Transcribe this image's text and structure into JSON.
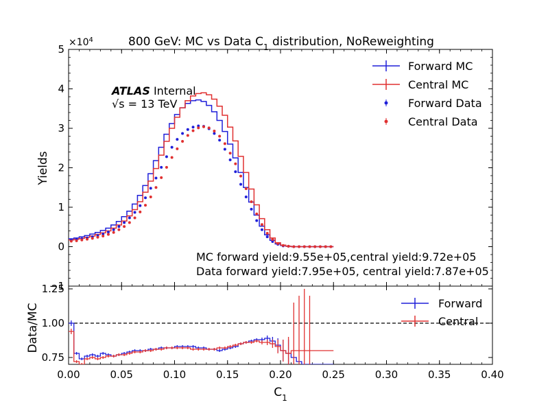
{
  "colors": {
    "forward": "#1f1fd9",
    "central": "#e03030",
    "axis": "#000000",
    "refline": "#000000"
  },
  "chart_data": [
    {
      "type": "line",
      "panel": "main",
      "title_parts": {
        "prefix": "800 GeV: MC vs Data C",
        "subscript": "1",
        "suffix": " distribution, NoReweighting"
      },
      "ylabel": "Yields",
      "y_multiplier": "×10",
      "y_multiplier_exp": "4",
      "xlim": [
        0.0,
        0.4
      ],
      "ylim": [
        -1,
        5
      ],
      "y_ticks": [
        "−1",
        "0",
        "1",
        "2",
        "3",
        "4",
        "5"
      ],
      "y_tick_values": [
        -1,
        0,
        1,
        2,
        3,
        4,
        5
      ],
      "atlas_label": {
        "bold": "ATLAS",
        "rest": " Internal"
      },
      "energy_label": {
        "sqrt": "√s",
        "rest": " =  13 TeV"
      },
      "annotations": [
        "MC forward yield:9.55e+05,central yield:9.72e+05",
        "Data forward yield:7.95e+05, central yield:7.87e+05"
      ],
      "legend": [
        "Forward MC",
        "Central MC",
        "Forward Data",
        "Central Data"
      ],
      "bin_edges_start": 0.0,
      "bin_width": 0.005,
      "series": [
        {
          "name": "Forward MC",
          "style": "step",
          "color": "#1f1fd9",
          "values": [
            0.2,
            0.22,
            0.25,
            0.28,
            0.32,
            0.36,
            0.41,
            0.47,
            0.55,
            0.64,
            0.76,
            0.9,
            1.08,
            1.3,
            1.55,
            1.85,
            2.18,
            2.52,
            2.85,
            3.12,
            3.35,
            3.52,
            3.63,
            3.7,
            3.72,
            3.68,
            3.58,
            3.42,
            3.2,
            2.92,
            2.6,
            2.25,
            1.88,
            1.5,
            1.13,
            0.8,
            0.52,
            0.3,
            0.16,
            0.07,
            0.03,
            0.01,
            0.0,
            0.0,
            0.0,
            0.0,
            0.0,
            0.0,
            0.0,
            0.0
          ]
        },
        {
          "name": "Central MC",
          "style": "step",
          "color": "#e03030",
          "values": [
            0.17,
            0.19,
            0.21,
            0.24,
            0.27,
            0.31,
            0.35,
            0.4,
            0.47,
            0.55,
            0.65,
            0.78,
            0.94,
            1.14,
            1.38,
            1.66,
            1.98,
            2.32,
            2.67,
            3.0,
            3.28,
            3.52,
            3.7,
            3.82,
            3.88,
            3.9,
            3.85,
            3.74,
            3.56,
            3.33,
            3.03,
            2.68,
            2.29,
            1.88,
            1.46,
            1.06,
            0.71,
            0.43,
            0.22,
            0.1,
            0.04,
            0.01,
            0.0,
            0.0,
            0.0,
            0.0,
            0.0,
            0.0,
            0.0,
            0.0
          ]
        },
        {
          "name": "Forward Data",
          "style": "points",
          "color": "#1f1fd9",
          "values": [
            0.17,
            0.18,
            0.2,
            0.22,
            0.25,
            0.28,
            0.32,
            0.37,
            0.43,
            0.51,
            0.61,
            0.73,
            0.87,
            1.04,
            1.24,
            1.48,
            1.74,
            2.01,
            2.28,
            2.52,
            2.72,
            2.87,
            2.97,
            3.03,
            3.06,
            3.05,
            2.99,
            2.87,
            2.7,
            2.47,
            2.2,
            1.9,
            1.58,
            1.26,
            0.95,
            0.66,
            0.43,
            0.25,
            0.13,
            0.06,
            0.02,
            0.01,
            0.0,
            0.0,
            0.0,
            0.0,
            0.0,
            0.0,
            0.0,
            0.0
          ]
        },
        {
          "name": "Central Data",
          "style": "points",
          "color": "#e03030",
          "values": [
            0.14,
            0.15,
            0.17,
            0.19,
            0.21,
            0.24,
            0.27,
            0.31,
            0.36,
            0.43,
            0.51,
            0.61,
            0.73,
            0.88,
            1.05,
            1.26,
            1.5,
            1.75,
            2.01,
            2.26,
            2.48,
            2.67,
            2.82,
            2.94,
            3.01,
            3.04,
            3.01,
            2.93,
            2.8,
            2.61,
            2.37,
            2.1,
            1.79,
            1.47,
            1.14,
            0.83,
            0.56,
            0.34,
            0.18,
            0.08,
            0.03,
            0.01,
            0.0,
            0.0,
            0.0,
            0.0,
            0.0,
            0.0,
            0.0,
            0.0
          ]
        }
      ]
    },
    {
      "type": "line",
      "panel": "ratio",
      "ylabel": "Data/MC",
      "xlabel": "C",
      "xlabel_sub": "1",
      "xlim": [
        0.0,
        0.4
      ],
      "ylim": [
        0.7,
        1.27
      ],
      "x_ticks": [
        "0.00",
        "0.05",
        "0.10",
        "0.15",
        "0.20",
        "0.25",
        "0.30",
        "0.35",
        "0.40"
      ],
      "x_tick_values": [
        0.0,
        0.05,
        0.1,
        0.15,
        0.2,
        0.25,
        0.3,
        0.35,
        0.4
      ],
      "y_ticks": [
        "0.75",
        "1.00",
        "1.25"
      ],
      "y_tick_values": [
        0.75,
        1.0,
        1.25
      ],
      "reference_line": 1.0,
      "legend": [
        "Forward",
        "Central"
      ],
      "bin_edges_start": 0.0,
      "bin_width": 0.005,
      "series": [
        {
          "name": "Forward",
          "color": "#1f1fd9",
          "values": [
            1.0,
            0.78,
            0.74,
            0.76,
            0.77,
            0.76,
            0.78,
            0.77,
            0.76,
            0.77,
            0.78,
            0.79,
            0.8,
            0.8,
            0.8,
            0.81,
            0.81,
            0.82,
            0.82,
            0.82,
            0.83,
            0.83,
            0.83,
            0.83,
            0.82,
            0.82,
            0.81,
            0.81,
            0.8,
            0.81,
            0.82,
            0.83,
            0.85,
            0.86,
            0.87,
            0.88,
            0.88,
            0.89,
            0.87,
            0.84,
            0.8,
            0.78,
            0.75,
            0.72,
            0.7,
            0.7,
            0.7,
            0.7,
            0.7,
            0.7
          ],
          "errors": [
            0.02,
            0.01,
            0.01,
            0.01,
            0.01,
            0.01,
            0.01,
            0.01,
            0.01,
            0.01,
            0.01,
            0.01,
            0.01,
            0.01,
            0.01,
            0.01,
            0.01,
            0.01,
            0.01,
            0.01,
            0.01,
            0.01,
            0.01,
            0.01,
            0.01,
            0.01,
            0.01,
            0.01,
            0.01,
            0.01,
            0.01,
            0.01,
            0.01,
            0.01,
            0.01,
            0.01,
            0.015,
            0.02,
            0.03,
            0.05,
            0.08,
            0.1,
            0.0,
            0.0,
            0.0,
            0.0,
            0.0,
            0.0,
            0.0,
            0.0
          ]
        },
        {
          "name": "Central",
          "color": "#e03030",
          "values": [
            0.94,
            0.72,
            0.7,
            0.74,
            0.75,
            0.74,
            0.75,
            0.76,
            0.76,
            0.77,
            0.77,
            0.78,
            0.79,
            0.79,
            0.8,
            0.8,
            0.81,
            0.81,
            0.82,
            0.82,
            0.82,
            0.82,
            0.82,
            0.81,
            0.81,
            0.81,
            0.81,
            0.81,
            0.82,
            0.82,
            0.83,
            0.84,
            0.85,
            0.86,
            0.86,
            0.87,
            0.86,
            0.86,
            0.85,
            0.83,
            0.8,
            0.78,
            0.8,
            0.8,
            0.8,
            0.8,
            0.8,
            0.8,
            0.8,
            0.8
          ],
          "errors": [
            0.02,
            0.01,
            0.01,
            0.01,
            0.01,
            0.01,
            0.01,
            0.01,
            0.01,
            0.01,
            0.01,
            0.01,
            0.01,
            0.01,
            0.01,
            0.01,
            0.01,
            0.01,
            0.01,
            0.01,
            0.01,
            0.01,
            0.01,
            0.01,
            0.01,
            0.01,
            0.01,
            0.01,
            0.01,
            0.01,
            0.01,
            0.01,
            0.01,
            0.01,
            0.01,
            0.01,
            0.015,
            0.02,
            0.03,
            0.05,
            0.08,
            0.12,
            0.35,
            0.4,
            0.45,
            0.4,
            0.0,
            0.0,
            0.0,
            0.0
          ]
        }
      ]
    }
  ]
}
